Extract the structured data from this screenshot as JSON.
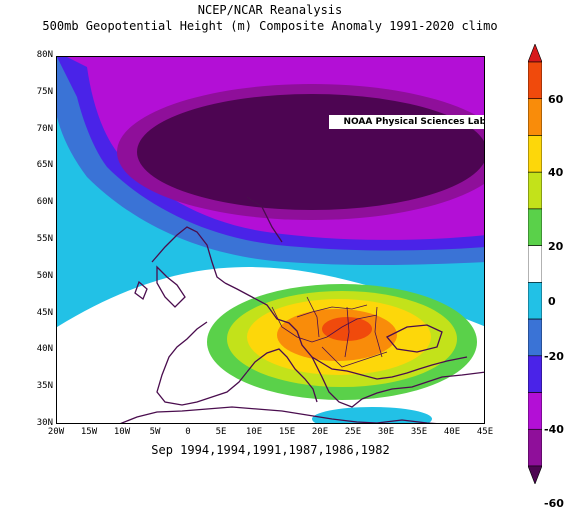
{
  "header": {
    "title": "NCEP/NCAR Reanalysis",
    "subtitle": "500mb Geopotential Height (m) Composite Anomaly 1991-2020 climo"
  },
  "map": {
    "credit": "NOAA Physical Sciences Laboratory",
    "lat_labels": [
      "80N",
      "75N",
      "70N",
      "65N",
      "60N",
      "55N",
      "50N",
      "45N",
      "40N",
      "35N",
      "30N"
    ],
    "lon_labels": [
      "20W",
      "15W",
      "10W",
      "5W",
      "0",
      "5E",
      "10E",
      "15E",
      "20E",
      "25E",
      "30E",
      "35E",
      "40E",
      "45E"
    ],
    "caption": "Sep 1994,1994,1991,1987,1986,1982",
    "extent": {
      "lon": [
        -20,
        45
      ],
      "lat": [
        30,
        80
      ]
    }
  },
  "colorbar": {
    "labels": [
      "60",
      "40",
      "20",
      "0",
      "-20",
      "-40",
      "-60"
    ],
    "bins": [
      {
        "range": "> 60",
        "color": "#d7191c"
      },
      {
        "range": "50 to 60",
        "color": "#f04a0c"
      },
      {
        "range": "40 to 50",
        "color": "#f98c0a"
      },
      {
        "range": "30 to 40",
        "color": "#fdd70a"
      },
      {
        "range": "20 to 30",
        "color": "#c3e21a"
      },
      {
        "range": "10 to 20",
        "color": "#5ad14a"
      },
      {
        "range": "-10 to 10",
        "color": "#ffffff"
      },
      {
        "range": "-20 to -10",
        "color": "#22c1e6"
      },
      {
        "range": "-30 to -20",
        "color": "#3a73d6"
      },
      {
        "range": "-40 to -30",
        "color": "#4a23e8"
      },
      {
        "range": "-50 to -40",
        "color": "#b30fd6"
      },
      {
        "range": "-60 to -50",
        "color": "#8f0f9a"
      },
      {
        "range": "< -60",
        "color": "#4d0552"
      }
    ]
  }
}
